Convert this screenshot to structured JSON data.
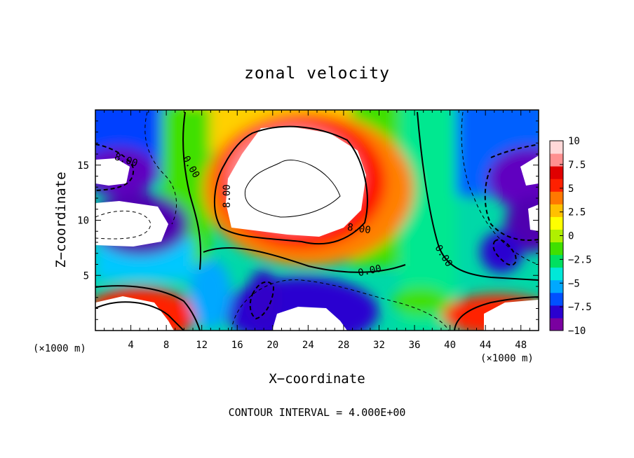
{
  "chart_data": {
    "type": "heatmap",
    "title": "zonal velocity",
    "xlabel": "X−coordinate",
    "ylabel": "Z−coordinate",
    "x_unit": "(×1000 m)",
    "y_unit": "(×1000 m)",
    "xlim": [
      0,
      50
    ],
    "ylim": [
      0,
      20
    ],
    "x_ticks": [
      4,
      8,
      12,
      16,
      20,
      24,
      28,
      32,
      36,
      40,
      44,
      48
    ],
    "y_ticks": [
      5,
      10,
      15
    ],
    "colorbar": {
      "range": [
        -10,
        10
      ],
      "tick_values": [
        10,
        7.5,
        5,
        2.5,
        0,
        -2.5,
        -5,
        -7.5,
        -10
      ],
      "tick_labels": [
        "10",
        "7.5",
        "5",
        "2.5",
        "0",
        "−2.5",
        "−5",
        "−7.5",
        "−10"
      ],
      "colors": [
        "#7a00a0",
        "#2a00d0",
        "#0050ff",
        "#00a8ff",
        "#00e8d8",
        "#00e060",
        "#40e000",
        "#b0f000",
        "#ffff00",
        "#ffc000",
        "#ff7800",
        "#ff2000",
        "#e00000",
        "#ff9090",
        "#ffd8d8"
      ]
    },
    "contour_interval": 4.0,
    "contour_labels": [
      "8.00",
      "0.00",
      "8.00",
      "8.00",
      "0.00",
      "0.00"
    ],
    "footer": "CONTOUR INTERVAL = 4.000E+00"
  }
}
